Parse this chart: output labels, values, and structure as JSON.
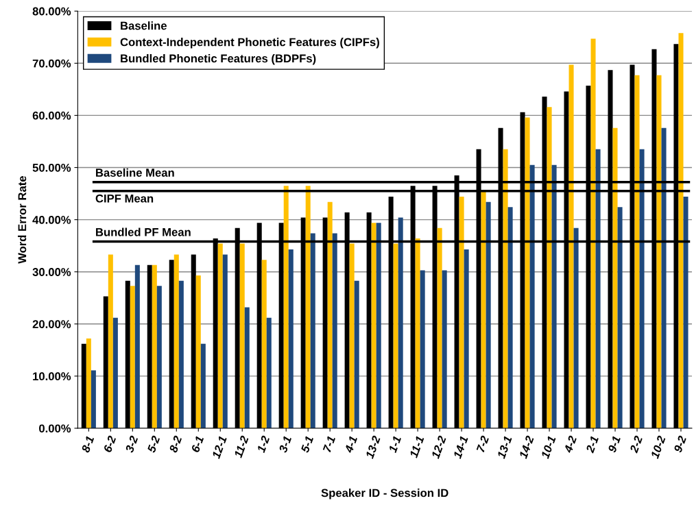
{
  "chart_data": {
    "type": "bar",
    "xlabel": "Speaker ID - Session ID",
    "ylabel": "Word Error Rate",
    "categories": [
      "8-1",
      "6-2",
      "3-2",
      "5-2",
      "8-2",
      "6-1",
      "12-1",
      "11-2",
      "1-2",
      "3-1",
      "5-1",
      "7-1",
      "4-1",
      "13-2",
      "1-1",
      "11-1",
      "12-2",
      "14-1",
      "7-2",
      "13-1",
      "14-2",
      "10-1",
      "4-2",
      "2-1",
      "9-1",
      "2-2",
      "10-2",
      "9-2"
    ],
    "series": [
      {
        "name": "Baseline",
        "color": "#000000",
        "values": [
          16.2,
          25.3,
          28.3,
          31.3,
          32.3,
          33.3,
          36.4,
          38.4,
          39.4,
          39.4,
          40.4,
          40.4,
          41.4,
          41.4,
          44.4,
          46.5,
          46.5,
          48.5,
          53.5,
          57.6,
          60.6,
          63.6,
          64.6,
          65.7,
          68.7,
          69.7,
          72.7,
          73.7
        ]
      },
      {
        "name": "Context-Independent Phonetic Features (CIPFs)",
        "color": "#ffc000",
        "values": [
          17.2,
          33.3,
          27.3,
          31.3,
          33.3,
          29.3,
          35.4,
          35.4,
          32.3,
          46.5,
          46.5,
          43.4,
          35.4,
          39.4,
          35.4,
          36.4,
          38.4,
          44.4,
          45.5,
          53.5,
          59.6,
          61.6,
          69.7,
          74.7,
          57.6,
          67.7,
          67.7,
          75.8
        ]
      },
      {
        "name": "Bundled Phonetic Features (BDPFs)",
        "color": "#1f497d",
        "values": [
          11.1,
          21.2,
          31.3,
          27.3,
          28.3,
          16.2,
          33.3,
          23.2,
          21.2,
          34.3,
          37.4,
          37.4,
          28.3,
          39.4,
          40.4,
          30.3,
          30.3,
          34.3,
          43.4,
          42.4,
          50.5,
          50.5,
          38.4,
          53.5,
          42.4,
          53.5,
          57.6,
          44.4
        ]
      }
    ],
    "ylim": [
      0,
      80
    ],
    "yticks": [
      {
        "value": 0,
        "label": "0.00%"
      },
      {
        "value": 10,
        "label": "10.00%"
      },
      {
        "value": 20,
        "label": "20.00%"
      },
      {
        "value": 30,
        "label": "30.00%"
      },
      {
        "value": 40,
        "label": "40.00%"
      },
      {
        "value": 50,
        "label": "50.00%"
      },
      {
        "value": 60,
        "label": "60.00%"
      },
      {
        "value": 70,
        "label": "70.00%"
      },
      {
        "value": 80,
        "label": "80.00%"
      }
    ],
    "ref_lines": [
      {
        "axis": "y",
        "value": 47.2,
        "label": "Baseline Mean",
        "color": "#000000"
      },
      {
        "axis": "y",
        "value": 45.5,
        "label": "CIPF Mean",
        "color": "#000000"
      },
      {
        "axis": "y",
        "value": 35.8,
        "label": "Bundled PF Mean",
        "color": "#000000"
      }
    ],
    "grid": "y",
    "legend": "top left"
  }
}
